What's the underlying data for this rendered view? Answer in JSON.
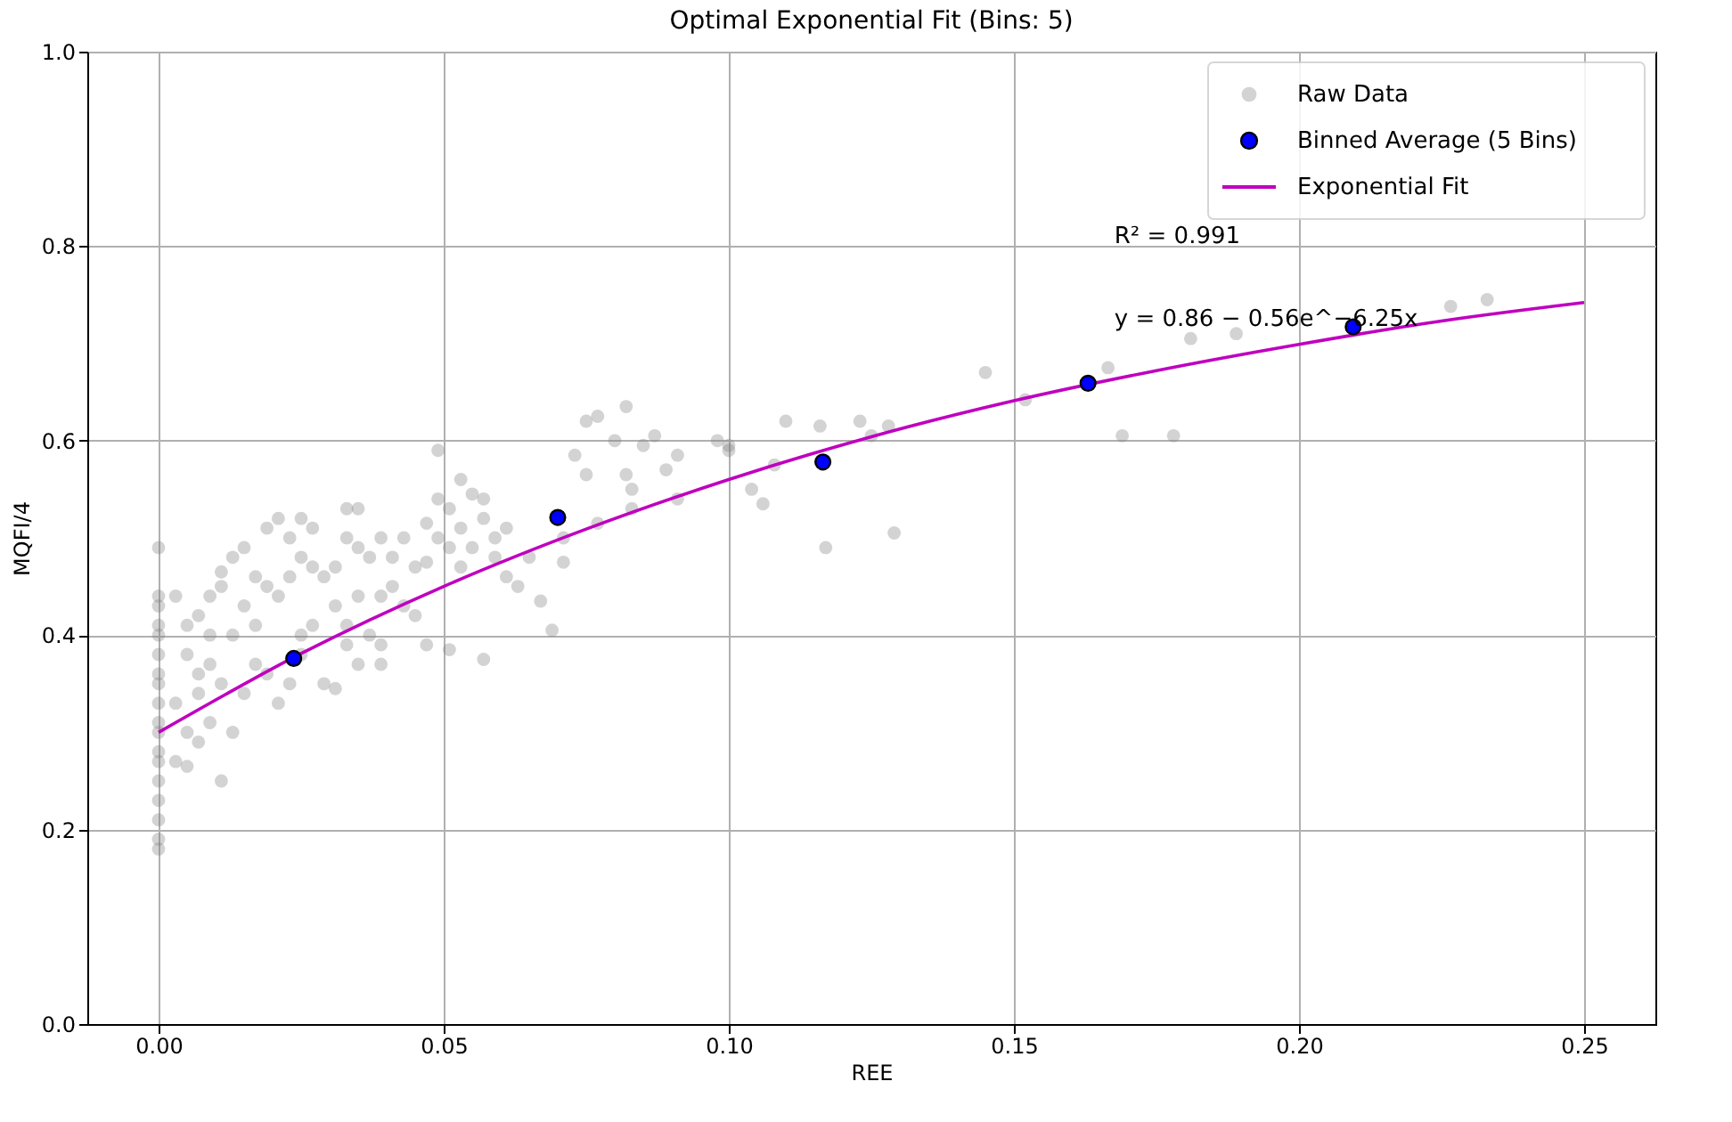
{
  "chart_data": {
    "type": "scatter",
    "title": "Optimal Exponential Fit (Bins: 5)",
    "xlabel": "REE",
    "ylabel": "MQFI/4",
    "xlim": [
      -0.0125,
      0.2625
    ],
    "ylim": [
      0,
      1
    ],
    "xticks": [
      {
        "value": 0,
        "label": "0.00"
      },
      {
        "value": 0.05,
        "label": "0.05"
      },
      {
        "value": 0.1,
        "label": "0.10"
      },
      {
        "value": 0.15,
        "label": "0.15"
      },
      {
        "value": 0.2,
        "label": "0.20"
      },
      {
        "value": 0.25,
        "label": "0.25"
      }
    ],
    "yticks": [
      {
        "value": 0,
        "label": "0.0"
      },
      {
        "value": 0.2,
        "label": "0.2"
      },
      {
        "value": 0.4,
        "label": "0.4"
      },
      {
        "value": 0.6,
        "label": "0.6"
      },
      {
        "value": 0.8,
        "label": "0.8"
      },
      {
        "value": 1,
        "label": "1.0"
      }
    ],
    "grid": true,
    "legend": "top right",
    "marker": "circle",
    "annotations": [
      "R² = 0.991",
      "y = 0.86 − 0.56e^−6.25x"
    ],
    "series": [
      {
        "name": "Raw Data",
        "color": "#808080",
        "x": [
          0,
          0,
          0,
          0,
          0,
          0,
          0,
          0,
          0,
          0,
          0,
          0,
          0,
          0,
          0,
          0,
          0,
          0,
          0.003,
          0.003,
          0.003,
          0.005,
          0.005,
          0.005,
          0.005,
          0.007,
          0.007,
          0.007,
          0.007,
          0.009,
          0.009,
          0.009,
          0.009,
          0.011,
          0.011,
          0.011,
          0.011,
          0.013,
          0.013,
          0.013,
          0.015,
          0.015,
          0.015,
          0.017,
          0.017,
          0.017,
          0.019,
          0.019,
          0.019,
          0.021,
          0.021,
          0.021,
          0.023,
          0.023,
          0.023,
          0.025,
          0.025,
          0.025,
          0.025,
          0.027,
          0.027,
          0.027,
          0.029,
          0.029,
          0.031,
          0.031,
          0.031,
          0.033,
          0.033,
          0.033,
          0.033,
          0.035,
          0.035,
          0.035,
          0.035,
          0.037,
          0.037,
          0.039,
          0.039,
          0.039,
          0.039,
          0.041,
          0.041,
          0.043,
          0.043,
          0.045,
          0.045,
          0.047,
          0.047,
          0.047,
          0.049,
          0.049,
          0.049,
          0.051,
          0.051,
          0.051,
          0.053,
          0.053,
          0.053,
          0.055,
          0.055,
          0.057,
          0.057,
          0.057,
          0.059,
          0.059,
          0.061,
          0.061,
          0.063,
          0.065,
          0.067,
          0.069,
          0.071,
          0.071,
          0.073,
          0.075,
          0.075,
          0.077,
          0.077,
          0.08,
          0.082,
          0.082,
          0.083,
          0.083,
          0.085,
          0.087,
          0.089,
          0.091,
          0.091,
          0.098,
          0.1,
          0.1,
          0.104,
          0.106,
          0.108,
          0.11,
          0.116,
          0.117,
          0.123,
          0.125,
          0.128,
          0.129,
          0.145,
          0.152,
          0.1665,
          0.169,
          0.178,
          0.181,
          0.189,
          0.2266,
          0.233
        ],
        "values": [
          0.49,
          0.44,
          0.43,
          0.41,
          0.4,
          0.38,
          0.36,
          0.35,
          0.33,
          0.31,
          0.3,
          0.28,
          0.27,
          0.25,
          0.23,
          0.21,
          0.19,
          0.18,
          0.44,
          0.33,
          0.27,
          0.41,
          0.38,
          0.3,
          0.265,
          0.42,
          0.36,
          0.34,
          0.29,
          0.44,
          0.4,
          0.37,
          0.31,
          0.465,
          0.45,
          0.35,
          0.25,
          0.48,
          0.4,
          0.3,
          0.49,
          0.43,
          0.34,
          0.46,
          0.41,
          0.37,
          0.51,
          0.45,
          0.36,
          0.52,
          0.44,
          0.33,
          0.5,
          0.46,
          0.35,
          0.52,
          0.48,
          0.4,
          0.38,
          0.51,
          0.47,
          0.41,
          0.46,
          0.35,
          0.47,
          0.43,
          0.345,
          0.53,
          0.5,
          0.41,
          0.39,
          0.53,
          0.49,
          0.44,
          0.37,
          0.48,
          0.4,
          0.5,
          0.44,
          0.39,
          0.37,
          0.48,
          0.45,
          0.5,
          0.43,
          0.47,
          0.42,
          0.515,
          0.475,
          0.39,
          0.59,
          0.54,
          0.5,
          0.53,
          0.49,
          0.385,
          0.56,
          0.51,
          0.47,
          0.545,
          0.49,
          0.54,
          0.52,
          0.375,
          0.5,
          0.48,
          0.51,
          0.46,
          0.45,
          0.48,
          0.435,
          0.405,
          0.475,
          0.5,
          0.585,
          0.62,
          0.565,
          0.625,
          0.515,
          0.6,
          0.635,
          0.565,
          0.55,
          0.53,
          0.595,
          0.605,
          0.57,
          0.585,
          0.54,
          0.6,
          0.595,
          0.59,
          0.55,
          0.535,
          0.575,
          0.62,
          0.615,
          0.49,
          0.62,
          0.605,
          0.615,
          0.505,
          0.67,
          0.642,
          0.675,
          0.605,
          0.605,
          0.705,
          0.71,
          0.738,
          0.745
        ]
      },
      {
        "name": "Binned Average (5 Bins)",
        "color": "#0000ff",
        "x": [
          0.0237,
          0.07,
          0.1165,
          0.163,
          0.2095
        ],
        "values": [
          0.376,
          0.521,
          0.578,
          0.659,
          0.717
        ]
      },
      {
        "name": "Exponential Fit",
        "type": "line",
        "color": "#bf00bf",
        "line_style": "solid",
        "marker": "none",
        "x": [
          0,
          0.025,
          0.05,
          0.075,
          0.1,
          0.125,
          0.15,
          0.175,
          0.2,
          0.225,
          0.25
        ],
        "values": [
          0.3,
          0.381,
          0.45,
          0.509,
          0.56,
          0.604,
          0.641,
          0.672,
          0.699,
          0.723,
          0.742
        ]
      }
    ]
  }
}
